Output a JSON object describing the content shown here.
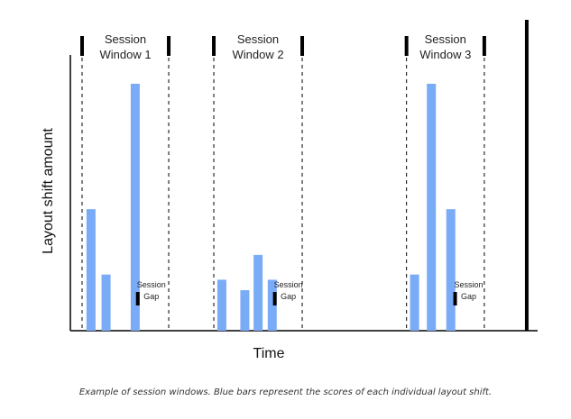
{
  "chart_data": {
    "type": "bar",
    "xlabel": "Time",
    "ylabel": "Layout shift amount",
    "ylim": [
      0,
      1
    ],
    "grid": false,
    "legend": "none",
    "bar_color": "#7aabf7",
    "axis_color": "#000000",
    "session_windows": [
      {
        "title_lines": [
          "Session",
          "Window 1"
        ],
        "start_time": 0.0,
        "end_time": 0.98,
        "bars": [
          {
            "time": 0.05,
            "value": 0.465
          },
          {
            "time": 0.22,
            "value": 0.215
          },
          {
            "time": 0.55,
            "value": 0.945
          }
        ],
        "gap_label_lines": [
          "Session",
          "Gap"
        ],
        "gap_marker_time": 0.63
      },
      {
        "title_lines": [
          "Session",
          "Window 2"
        ],
        "start_time": 1.49,
        "end_time": 2.49,
        "bars": [
          {
            "time": 1.53,
            "value": 0.195
          },
          {
            "time": 1.79,
            "value": 0.155
          },
          {
            "time": 1.94,
            "value": 0.29
          },
          {
            "time": 2.1,
            "value": 0.195
          }
        ],
        "gap_label_lines": [
          "Session",
          "Gap"
        ],
        "gap_marker_time": 2.18
      },
      {
        "title_lines": [
          "Session",
          "Window 3"
        ],
        "start_time": 3.67,
        "end_time": 4.55,
        "bars": [
          {
            "time": 3.71,
            "value": 0.215
          },
          {
            "time": 3.9,
            "value": 0.945
          },
          {
            "time": 4.12,
            "value": 0.465
          }
        ],
        "gap_label_lines": [
          "Session",
          "Gap"
        ],
        "gap_marker_time": 4.22
      }
    ],
    "end_marker_time": 5.03
  },
  "caption": "Example of session windows. Blue bars represent the scores of each individual layout shift."
}
